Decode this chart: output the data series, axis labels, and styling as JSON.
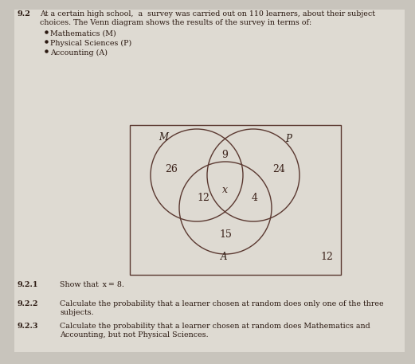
{
  "bg_color": "#c8c4bc",
  "page_color": "#dedad2",
  "circle_color": "#5a3830",
  "rect_color": "#5a3830",
  "text_color": "#2a1810",
  "number_color": "#3a2018",
  "venn_numbers": {
    "M_only": "26",
    "P_only": "24",
    "A_only": "15",
    "MP_only": "9",
    "MA_only": "12",
    "PA_only": "4",
    "center": "x",
    "outside": "12"
  },
  "fig_width": 5.21,
  "fig_height": 4.57,
  "dpi": 100
}
